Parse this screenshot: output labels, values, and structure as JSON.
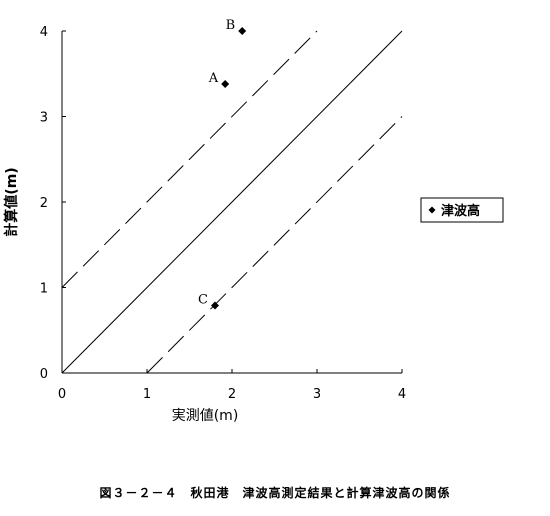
{
  "chart_data": {
    "type": "scatter",
    "x_label": "実測値(m)",
    "y_label": "計算値(m)",
    "caption": "図３－２－４　秋田港　津波高測定結果と計算津波高の関係",
    "xlim": [
      0,
      4
    ],
    "ylim": [
      0,
      4
    ],
    "xticks": [
      0,
      1,
      2,
      3,
      4
    ],
    "yticks": [
      0,
      1,
      2,
      3,
      4
    ],
    "series": [
      {
        "name": "津波高",
        "color": "#000000",
        "x": [
          1.92,
          2.12,
          1.8
        ],
        "values": [
          3.38,
          4.0,
          0.79
        ],
        "point_labels": [
          "A",
          "B",
          "C"
        ]
      }
    ],
    "reference_lines": [
      {
        "intercept": 0,
        "dashed": false
      },
      {
        "intercept": 1,
        "dashed": true
      },
      {
        "intercept": -1,
        "dashed": true
      }
    ],
    "legend": "right"
  }
}
